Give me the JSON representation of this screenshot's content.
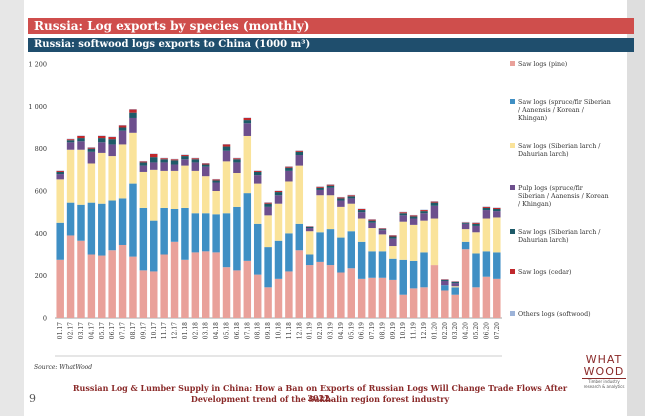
{
  "header": {
    "title": "Russia: Log exports by species (monthly)",
    "subtitle": "Russia: softwood logs exports to China (1000 m³)"
  },
  "source": "Source: WhatWood",
  "footer": {
    "line1": "Russian Log & Lumber Supply in China: How a Ban on Exports of Russian Logs Will Change Trade Flows After 2022.",
    "line2": "Development trend of the Sakhalin region forest industry"
  },
  "page_number": "9",
  "logo": {
    "line1": "WHAT",
    "line2": "WOOD",
    "tagline": "Timber industry research & analytics"
  },
  "colors": {
    "pine": "#e9a19a",
    "spruce": "#3f8fc4",
    "larch": "#fae39a",
    "pulp": "#6d4f8d",
    "larch_pulp": "#1d5a68",
    "cedar": "#c0282c",
    "others": "#9db3d8"
  },
  "chart_data": {
    "type": "bar",
    "stacked": true,
    "ylim": [
      0,
      1200
    ],
    "yticks": [
      "0",
      "200",
      "400",
      "600",
      "800",
      "1 000",
      "1 200"
    ],
    "grid": false,
    "legend_position": "right",
    "categories": [
      "01.17",
      "02.17",
      "03.17",
      "04.17",
      "05.17",
      "06.17",
      "07.17",
      "08.17",
      "09.17",
      "10.17",
      "11.17",
      "12.17",
      "01.18",
      "02.18",
      "03.18",
      "04.18",
      "05.18",
      "06.18",
      "07.18",
      "08.18",
      "09.18",
      "10.18",
      "11.18",
      "12.18",
      "01.19",
      "02.19",
      "03.19",
      "04.19",
      "05.19",
      "06.19",
      "07.19",
      "08.19",
      "09.19",
      "10.19",
      "11.19",
      "12.19",
      "01.20",
      "02.20",
      "03.20",
      "04.20",
      "05.20",
      "06.20",
      "07.20"
    ],
    "series": [
      {
        "name": "Saw logs (pine)",
        "values": [
          275,
          390,
          365,
          300,
          295,
          320,
          345,
          290,
          225,
          220,
          300,
          360,
          275,
          310,
          315,
          310,
          240,
          225,
          270,
          205,
          145,
          185,
          220,
          320,
          250,
          265,
          250,
          215,
          235,
          185,
          190,
          190,
          180,
          110,
          140,
          145,
          250,
          130,
          110,
          325,
          145,
          195,
          185
        ]
      },
      {
        "name": "Saw logs (spruce/fir Siberian / Aanensis / Korean / Khingan)",
        "values": [
          175,
          155,
          170,
          245,
          245,
          235,
          220,
          345,
          295,
          240,
          220,
          155,
          245,
          185,
          180,
          180,
          255,
          300,
          320,
          240,
          190,
          180,
          180,
          125,
          50,
          140,
          170,
          165,
          175,
          175,
          125,
          125,
          100,
          165,
          130,
          165,
          0,
          25,
          35,
          35,
          160,
          120,
          125
        ]
      },
      {
        "name": "Saw logs (Siberian larch / Dahurian larch)",
        "values": [
          205,
          250,
          260,
          185,
          240,
          210,
          255,
          240,
          170,
          240,
          175,
          180,
          200,
          200,
          175,
          110,
          245,
          160,
          270,
          190,
          150,
          175,
          245,
          275,
          110,
          175,
          160,
          145,
          130,
          110,
          110,
          80,
          60,
          180,
          170,
          150,
          220,
          0,
          5,
          60,
          100,
          155,
          165
        ]
      },
      {
        "name": "Pulp logs (spruce/fir Siberian / Aanensis / Korean / Khingan)",
        "values": [
          25,
          35,
          40,
          55,
          50,
          55,
          65,
          70,
          30,
          35,
          40,
          30,
          30,
          40,
          45,
          40,
          50,
          50,
          60,
          40,
          40,
          40,
          50,
          50,
          15,
          25,
          35,
          30,
          25,
          30,
          25,
          20,
          35,
          30,
          30,
          35,
          60,
          20,
          15,
          25,
          30,
          40,
          30
        ]
      },
      {
        "name": "Saw logs (Siberian larch / Dahurian larch)",
        "values": [
          10,
          10,
          15,
          15,
          20,
          25,
          15,
          25,
          15,
          25,
          15,
          20,
          15,
          15,
          10,
          10,
          20,
          15,
          15,
          15,
          15,
          15,
          15,
          15,
          5,
          10,
          10,
          10,
          10,
          10,
          10,
          5,
          10,
          10,
          10,
          10,
          15,
          5,
          5,
          5,
          10,
          10,
          10
        ]
      },
      {
        "name": "Saw logs (cedar)",
        "values": [
          5,
          5,
          10,
          5,
          10,
          10,
          10,
          15,
          5,
          15,
          5,
          5,
          5,
          5,
          5,
          5,
          10,
          5,
          10,
          5,
          5,
          5,
          5,
          5,
          2,
          5,
          5,
          5,
          5,
          5,
          5,
          3,
          5,
          5,
          5,
          5,
          5,
          2,
          2,
          2,
          5,
          5,
          5
        ]
      },
      {
        "name": "Others logs (softwood)",
        "values": [
          2,
          2,
          2,
          2,
          2,
          2,
          2,
          2,
          2,
          2,
          2,
          2,
          2,
          2,
          2,
          2,
          2,
          2,
          2,
          2,
          2,
          2,
          2,
          2,
          2,
          2,
          2,
          2,
          2,
          2,
          2,
          2,
          2,
          2,
          2,
          2,
          2,
          2,
          2,
          2,
          2,
          2,
          2
        ]
      }
    ],
    "legend": [
      "Saw logs (pine)",
      "Saw logs (spruce/fir Siberian / Aanensis / Korean / Khingan)",
      "Saw logs (Siberian larch / Dahurian larch)",
      "Pulp logs (spruce/fir Siberian / Aanensis / Korean / Khingan)",
      "Saw logs (Siberian larch / Dahurian larch)",
      "Saw logs (cedar)",
      "Others logs (softwood)"
    ]
  }
}
